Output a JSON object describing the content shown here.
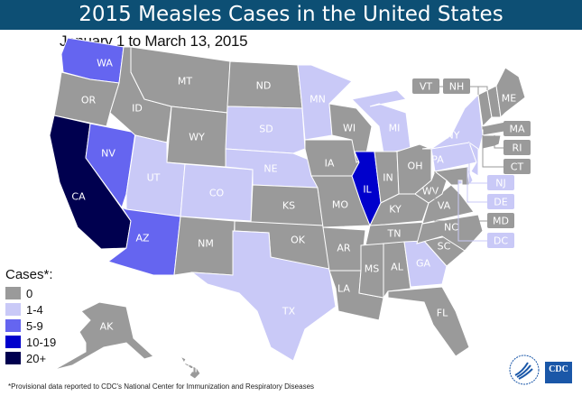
{
  "title": "2015 Measles Cases in the United States",
  "subtitle": "January 1 to March 13, 2015",
  "legend": {
    "title": "Cases*:",
    "items": [
      {
        "label": "0",
        "color": "#9a9a9a"
      },
      {
        "label": "1-4",
        "color": "#c9c9f7"
      },
      {
        "label": "5-9",
        "color": "#6565f0"
      },
      {
        "label": "10-19",
        "color": "#0000cc"
      },
      {
        "label": "20+",
        "color": "#00004f"
      }
    ]
  },
  "states": [
    {
      "abbr": "WA",
      "cat": 2
    },
    {
      "abbr": "OR",
      "cat": 0
    },
    {
      "abbr": "CA",
      "cat": 4
    },
    {
      "abbr": "NV",
      "cat": 2
    },
    {
      "abbr": "ID",
      "cat": 0
    },
    {
      "abbr": "MT",
      "cat": 0
    },
    {
      "abbr": "WY",
      "cat": 0
    },
    {
      "abbr": "UT",
      "cat": 1
    },
    {
      "abbr": "AZ",
      "cat": 2
    },
    {
      "abbr": "CO",
      "cat": 1
    },
    {
      "abbr": "NM",
      "cat": 0
    },
    {
      "abbr": "ND",
      "cat": 0
    },
    {
      "abbr": "SD",
      "cat": 1
    },
    {
      "abbr": "NE",
      "cat": 1
    },
    {
      "abbr": "KS",
      "cat": 0
    },
    {
      "abbr": "OK",
      "cat": 0
    },
    {
      "abbr": "TX",
      "cat": 1
    },
    {
      "abbr": "MN",
      "cat": 1
    },
    {
      "abbr": "IA",
      "cat": 0
    },
    {
      "abbr": "MO",
      "cat": 0
    },
    {
      "abbr": "AR",
      "cat": 0
    },
    {
      "abbr": "LA",
      "cat": 0
    },
    {
      "abbr": "WI",
      "cat": 0
    },
    {
      "abbr": "IL",
      "cat": 3
    },
    {
      "abbr": "MI",
      "cat": 1
    },
    {
      "abbr": "IN",
      "cat": 0
    },
    {
      "abbr": "OH",
      "cat": 0
    },
    {
      "abbr": "KY",
      "cat": 0
    },
    {
      "abbr": "TN",
      "cat": 0
    },
    {
      "abbr": "MS",
      "cat": 0
    },
    {
      "abbr": "AL",
      "cat": 0
    },
    {
      "abbr": "GA",
      "cat": 1
    },
    {
      "abbr": "FL",
      "cat": 0
    },
    {
      "abbr": "SC",
      "cat": 0
    },
    {
      "abbr": "NC",
      "cat": 0
    },
    {
      "abbr": "VA",
      "cat": 0
    },
    {
      "abbr": "WV",
      "cat": 0
    },
    {
      "abbr": "PA",
      "cat": 1
    },
    {
      "abbr": "NY",
      "cat": 1
    },
    {
      "abbr": "NJ",
      "cat": 1
    },
    {
      "abbr": "DE",
      "cat": 1
    },
    {
      "abbr": "MD",
      "cat": 0
    },
    {
      "abbr": "DC",
      "cat": 1
    },
    {
      "abbr": "VT",
      "cat": 0
    },
    {
      "abbr": "NH",
      "cat": 0
    },
    {
      "abbr": "ME",
      "cat": 0
    },
    {
      "abbr": "MA",
      "cat": 0
    },
    {
      "abbr": "CT",
      "cat": 0
    },
    {
      "abbr": "RI",
      "cat": 0
    },
    {
      "abbr": "AK",
      "cat": 0
    },
    {
      "abbr": "HI",
      "cat": 0
    }
  ],
  "footnote": "*Provisional data reported to CDC's National Center for Immunization and Respiratory Diseases",
  "logo": {
    "text": "CDC"
  }
}
